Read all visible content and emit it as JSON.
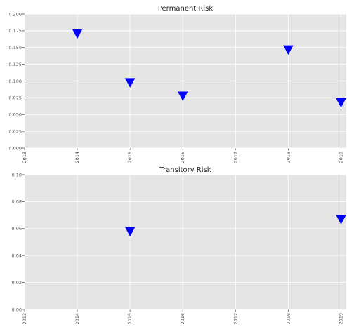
{
  "colors": {
    "marker": "#0000ff",
    "plot_background": "#e5e5e5",
    "grid": "#ffffff"
  },
  "chart_data": [
    {
      "type": "scatter",
      "title": "Permanent Risk",
      "xlabel": "",
      "ylabel": "",
      "marker": "triangle-down",
      "grid": true,
      "xlim": [
        2013,
        2019.1
      ],
      "ylim": [
        0,
        0.2
      ],
      "x_ticks": [
        "2013",
        "2014",
        "2015",
        "2016",
        "2017",
        "2018",
        "2019"
      ],
      "y_ticks": [
        "0.000",
        "0.025",
        "0.050",
        "0.075",
        "0.100",
        "0.125",
        "0.150",
        "0.175",
        "0.200"
      ],
      "series": [
        {
          "x": [
            2014,
            2015,
            2016,
            2018,
            2019
          ],
          "y": [
            0.171,
            0.098,
            0.078,
            0.147,
            0.068
          ]
        }
      ]
    },
    {
      "type": "scatter",
      "title": "Transitory Risk",
      "xlabel": "",
      "ylabel": "",
      "marker": "triangle-down",
      "grid": true,
      "xlim": [
        2013,
        2019.1
      ],
      "ylim": [
        0,
        0.1
      ],
      "x_ticks": [
        "2013",
        "2014",
        "2015",
        "2016",
        "2017",
        "2018",
        "2019"
      ],
      "y_ticks": [
        "0.00",
        "0.02",
        "0.04",
        "0.06",
        "0.08",
        "0.10"
      ],
      "series": [
        {
          "x": [
            2015,
            2019
          ],
          "y": [
            0.058,
            0.067
          ]
        }
      ]
    }
  ]
}
